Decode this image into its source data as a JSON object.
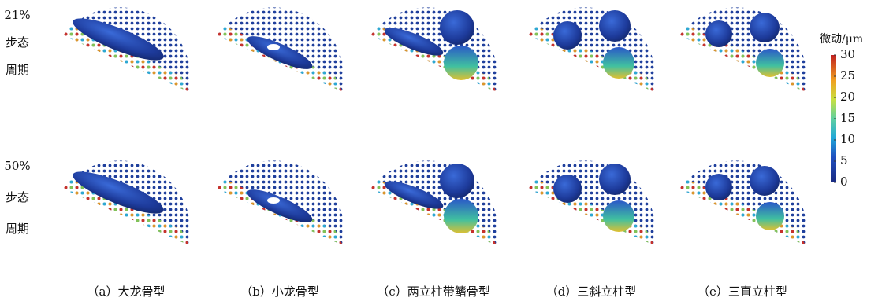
{
  "row_labels": [
    {
      "percent": "21%",
      "line1": "步态",
      "line2": "周期"
    },
    {
      "percent": "50%",
      "line1": "步态",
      "line2": "周期"
    }
  ],
  "captions": [
    "（a）大龙骨型",
    "（b）小龙骨型",
    "（c）两立柱带鳍骨型",
    "（d）三斜立柱型",
    "（e）三直立柱型"
  ],
  "colorbar": {
    "title": "微动/μm",
    "lim": [
      0,
      30
    ],
    "ticks": [
      0,
      5,
      10,
      15,
      20,
      25,
      30
    ]
  }
}
